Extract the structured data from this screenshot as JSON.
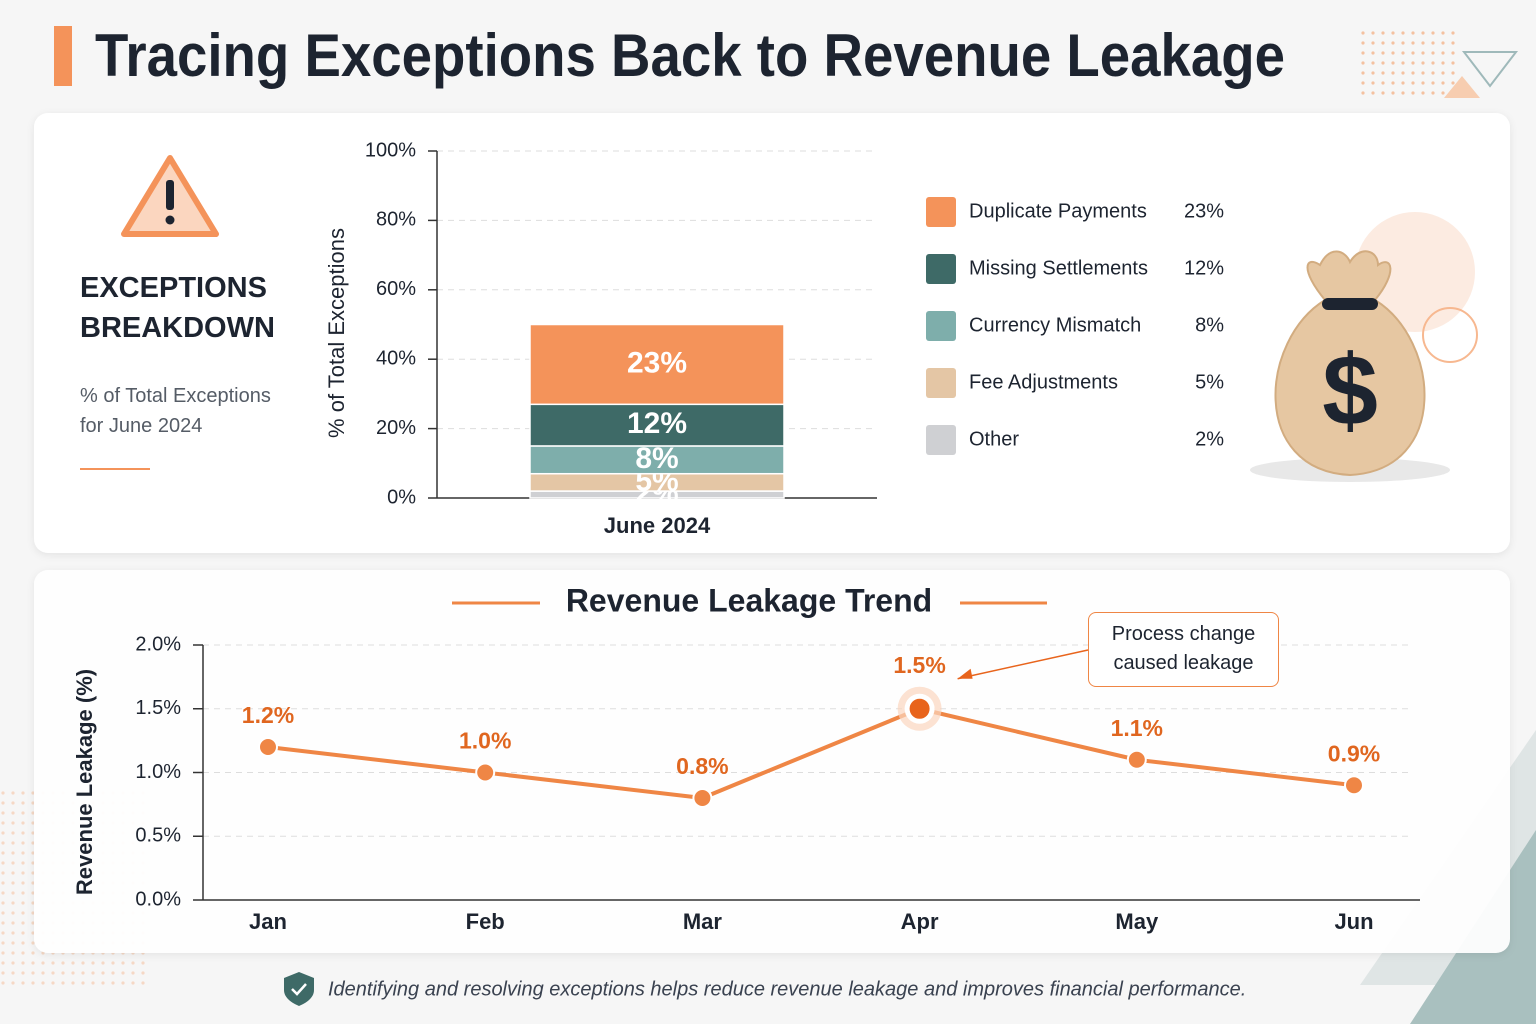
{
  "header": {
    "title": "Tracing Exceptions Back to Revenue Leakage"
  },
  "breakdown": {
    "title": "EXCEPTIONS BREAKDOWN",
    "subtitle": "% of Total Exceptions for June 2024"
  },
  "chart_data": [
    {
      "type": "bar",
      "stacked": true,
      "grid": true,
      "categories": [
        "June 2024"
      ],
      "y_label": "% of Total Exceptions",
      "ylim": [
        0,
        100
      ],
      "yticks": [
        {
          "value": 0,
          "label": "0%"
        },
        {
          "value": 20,
          "label": "20%"
        },
        {
          "value": 40,
          "label": "40%"
        },
        {
          "value": 60,
          "label": "60%"
        },
        {
          "value": 80,
          "label": "80%"
        },
        {
          "value": 100,
          "label": "100%"
        }
      ],
      "series": [
        {
          "name": "Duplicate Payments",
          "color": "#f4935a",
          "values": [
            23
          ],
          "value_labels": [
            "23%"
          ]
        },
        {
          "name": "Missing Settlements",
          "color": "#3e6a67",
          "values": [
            12
          ],
          "value_labels": [
            "12%"
          ]
        },
        {
          "name": "Currency Mismatch",
          "color": "#7eaeab",
          "values": [
            8
          ],
          "value_labels": [
            "8%"
          ]
        },
        {
          "name": "Fee Adjustments",
          "color": "#e4c6a5",
          "values": [
            5
          ],
          "value_labels": [
            "5%"
          ]
        },
        {
          "name": "Other",
          "color": "#cfd0d3",
          "values": [
            2
          ],
          "value_labels": [
            "2%"
          ]
        }
      ]
    },
    {
      "type": "line",
      "grid": true,
      "color": "#ef8645",
      "title": "Revenue Leakage Trend",
      "y_label": "Revenue Leakage (%)",
      "categories": [
        "Jan",
        "Feb",
        "Mar",
        "Apr",
        "May",
        "Jun"
      ],
      "values": [
        1.2,
        1.0,
        0.8,
        1.5,
        1.1,
        0.9
      ],
      "value_labels": [
        "1.2%",
        "1.0%",
        "0.8%",
        "1.5%",
        "1.1%",
        "0.9%"
      ],
      "ylim": [
        0,
        2
      ],
      "yticks": [
        {
          "value": 0,
          "label": "0.0%"
        },
        {
          "value": 0.5,
          "label": "0.5%"
        },
        {
          "value": 1,
          "label": "1.0%"
        },
        {
          "value": 1.5,
          "label": "1.5%"
        },
        {
          "value": 2,
          "label": "2.0%"
        }
      ],
      "annotation": "Process change caused leakage"
    }
  ],
  "footer": "Identifying and resolving exceptions helps reduce revenue leakage and improves financial performance."
}
